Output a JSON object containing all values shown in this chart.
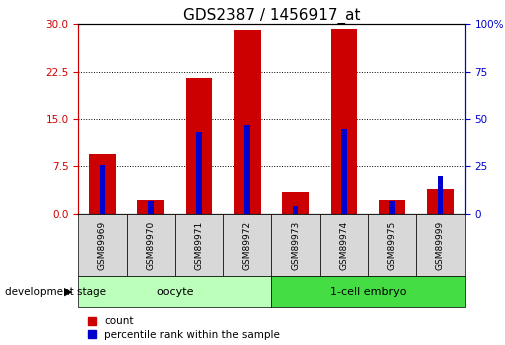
{
  "title": "GDS2387 / 1456917_at",
  "samples": [
    "GSM89969",
    "GSM89970",
    "GSM89971",
    "GSM89972",
    "GSM89973",
    "GSM89974",
    "GSM89975",
    "GSM89999"
  ],
  "count_values": [
    9.5,
    2.2,
    21.5,
    29.0,
    3.5,
    29.2,
    2.2,
    4.0
  ],
  "percentile_values": [
    26,
    7,
    43,
    47,
    4,
    45,
    7,
    20
  ],
  "ylim_left": [
    0,
    30
  ],
  "ylim_right": [
    0,
    100
  ],
  "yticks_left": [
    0,
    7.5,
    15,
    22.5,
    30
  ],
  "yticks_right": [
    0,
    25,
    50,
    75,
    100
  ],
  "grid_lines": [
    7.5,
    15,
    22.5
  ],
  "count_color": "#cc0000",
  "percentile_color": "#0000cc",
  "groups": [
    {
      "label": "oocyte",
      "start": 0,
      "end": 3,
      "color": "#bbffbb"
    },
    {
      "label": "1-cell embryo",
      "start": 4,
      "end": 7,
      "color": "#44dd44"
    }
  ],
  "ylabel_left_color": "#cc0000",
  "ylabel_right_color": "#0000cc",
  "plot_bg_color": "#ffffff",
  "dev_stage_label": "development stage",
  "legend_count": "count",
  "legend_percentile": "percentile rank within the sample",
  "title_fontsize": 11,
  "tick_fontsize": 7.5,
  "sample_label_fontsize": 6.5,
  "group_label_fontsize": 8
}
